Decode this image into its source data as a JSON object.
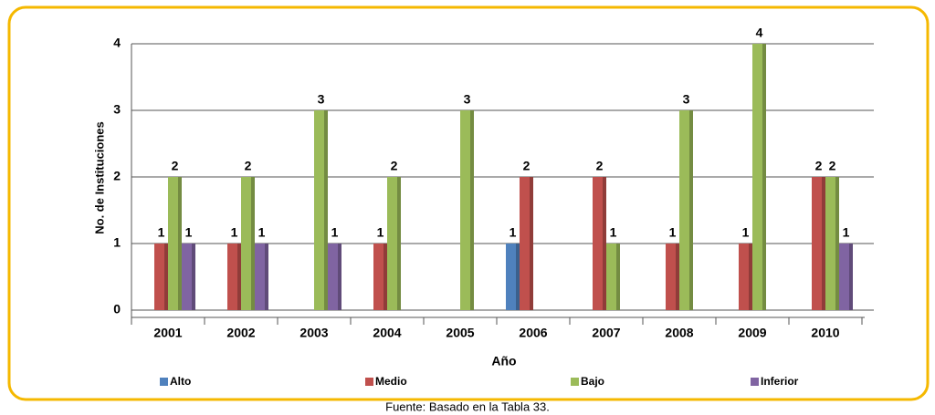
{
  "chart_data": {
    "type": "bar",
    "categories": [
      "2001",
      "2002",
      "2003",
      "2004",
      "2005",
      "2006",
      "2007",
      "2008",
      "2009",
      "2010"
    ],
    "series": [
      {
        "name": "Alto",
        "color": "#4f81bd",
        "values": [
          null,
          null,
          null,
          null,
          null,
          1,
          null,
          null,
          null,
          null
        ]
      },
      {
        "name": "Medio",
        "color": "#c0504d",
        "values": [
          1,
          1,
          null,
          1,
          null,
          2,
          2,
          1,
          1,
          2
        ]
      },
      {
        "name": "Bajo",
        "color": "#9bbb59",
        "values": [
          2,
          2,
          3,
          2,
          3,
          null,
          1,
          3,
          4,
          2
        ]
      },
      {
        "name": "Inferior",
        "color": "#8064a2",
        "values": [
          1,
          1,
          1,
          null,
          null,
          null,
          null,
          null,
          null,
          1
        ]
      }
    ],
    "x_label": "Año",
    "y_label": "No. de Instituciones",
    "ylim": [
      0,
      4
    ],
    "yticks": [
      0,
      1,
      2,
      3,
      4
    ],
    "grid": true,
    "legend": "bottom",
    "caption": "Fuente: Basado en la Tabla 33."
  }
}
